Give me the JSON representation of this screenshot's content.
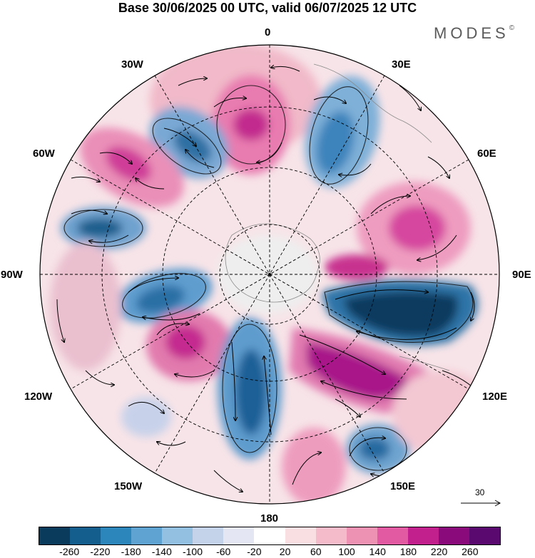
{
  "title": "Base 30/06/2025 00 UTC, valid 06/07/2025 12 UTC",
  "brand": {
    "name": "MODES",
    "mark": "©"
  },
  "lon_labels": {
    "lon_0": "0",
    "lon_30e": "30E",
    "lon_60e": "60E",
    "lon_90e": "90E",
    "lon_120e": "120E",
    "lon_150e": "150E",
    "lon_180": "180",
    "lon_150w": "150W",
    "lon_120w": "120W",
    "lon_90w": "90W",
    "lon_60w": "60W",
    "lon_30w": "30W"
  },
  "reference_vector": {
    "value": "30",
    "icon": "arrow-right-icon"
  },
  "colorbar": {
    "colors": [
      "#0b3b5c",
      "#135e8c",
      "#2d86bb",
      "#5ea3d1",
      "#93bfe0",
      "#c4d3ea",
      "#e5e6f3",
      "#ffffff",
      "#f9dfe2",
      "#f4bccb",
      "#ee92b4",
      "#e25aa2",
      "#c2208c",
      "#8a0a7c",
      "#5a0a6e"
    ],
    "ticks": [
      "-260",
      "-220",
      "-180",
      "-140",
      "-100",
      "-60",
      "-20",
      "20",
      "60",
      "100",
      "140",
      "180",
      "220",
      "260"
    ]
  }
}
